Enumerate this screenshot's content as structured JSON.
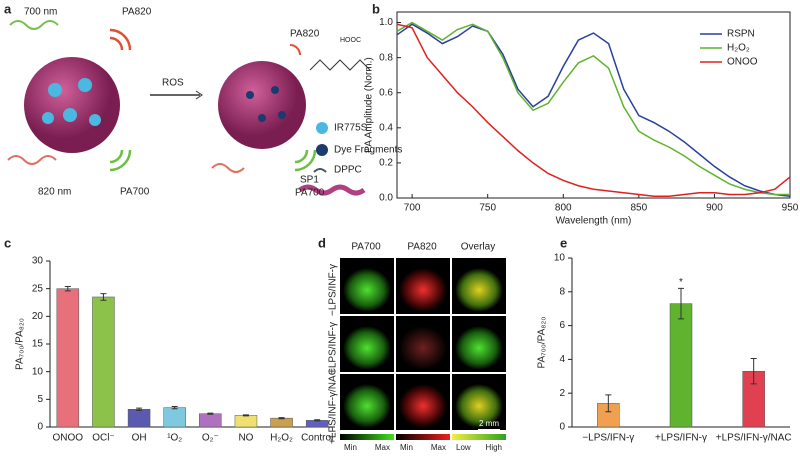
{
  "chart_data": [
    {
      "type": "line",
      "panel": "b",
      "xlabel": "Wavelength (nm)",
      "ylabel": "PA Amplitude (Norm.)",
      "x": [
        690,
        700,
        710,
        720,
        730,
        740,
        750,
        760,
        770,
        780,
        790,
        800,
        810,
        820,
        830,
        840,
        850,
        860,
        870,
        880,
        890,
        900,
        910,
        920,
        930,
        940,
        950
      ],
      "series": [
        {
          "name": "RSPN",
          "color": "#2a3f9e",
          "values": [
            0.93,
            0.99,
            0.94,
            0.88,
            0.92,
            0.98,
            0.95,
            0.82,
            0.62,
            0.52,
            0.58,
            0.75,
            0.9,
            0.94,
            0.88,
            0.62,
            0.47,
            0.43,
            0.38,
            0.32,
            0.25,
            0.18,
            0.12,
            0.07,
            0.04,
            0.02,
            0.01
          ]
        },
        {
          "name": "H₂O₂",
          "color": "#5fb32e",
          "values": [
            0.95,
            1.0,
            0.95,
            0.9,
            0.96,
            0.99,
            0.95,
            0.8,
            0.6,
            0.5,
            0.54,
            0.66,
            0.77,
            0.81,
            0.74,
            0.52,
            0.38,
            0.33,
            0.29,
            0.24,
            0.18,
            0.13,
            0.08,
            0.05,
            0.03,
            0.02,
            0.02
          ]
        },
        {
          "name": "ONOO",
          "color": "#e02020",
          "values": [
            0.99,
            0.97,
            0.8,
            0.7,
            0.6,
            0.52,
            0.43,
            0.35,
            0.27,
            0.2,
            0.14,
            0.1,
            0.07,
            0.05,
            0.04,
            0.03,
            0.02,
            0.01,
            0.01,
            0.02,
            0.03,
            0.03,
            0.02,
            0.02,
            0.03,
            0.05,
            0.12
          ]
        }
      ],
      "xlim": [
        690,
        950
      ],
      "xticks": [
        700,
        750,
        800,
        850,
        900,
        950
      ],
      "ylim": [
        0,
        1.06
      ],
      "yticks": [
        {
          "value": 0,
          "label": "0.0"
        },
        0.2,
        0.4,
        0.6,
        0.8,
        {
          "value": 1,
          "label": "1.0"
        }
      ],
      "legend": "upper right"
    },
    {
      "type": "bar",
      "panel": "c",
      "ylabel": "PA₇₀₀/PA₈₂₀",
      "categories": [
        "ONOO",
        "OCl⁻",
        "OH",
        "¹O₂",
        "O₂⁻",
        "NO",
        "H₂O₂",
        "Control"
      ],
      "values": [
        25,
        23.5,
        3.2,
        3.5,
        2.4,
        2.1,
        1.6,
        1.2
      ],
      "errors": [
        0.4,
        0.6,
        0.2,
        0.2,
        0.1,
        0.1,
        0.1,
        0.1
      ],
      "colors": [
        "#e8707a",
        "#8cc24a",
        "#5a5ab0",
        "#7ec8e0",
        "#b070c0",
        "#f0e070",
        "#c8a050",
        "#6060c0"
      ],
      "ylim": [
        0,
        30
      ],
      "yticks": [
        0,
        5,
        10,
        15,
        20,
        25,
        30
      ]
    },
    {
      "type": "bar",
      "panel": "e",
      "ylabel": "PA₇₀₀/PA₈₂₀",
      "categories": [
        "−LPS/IFN-γ",
        "+LPS/IFN-γ",
        "+LPS/IFN-γ/NAC"
      ],
      "values": [
        1.4,
        7.3,
        3.3
      ],
      "errors": [
        0.5,
        0.9,
        0.75
      ],
      "colors": [
        "#f0a050",
        "#5fb32e",
        "#e04050"
      ],
      "annotation": "*",
      "ylim": [
        0,
        10
      ],
      "yticks": [
        0,
        2,
        4,
        6,
        8,
        10
      ]
    }
  ],
  "diagram": {
    "panel": "a",
    "labels": [
      "700 nm",
      "PA820",
      "820 nm",
      "PA700",
      "ROS",
      "PA820",
      "PA700",
      "HOOC",
      "IR775S",
      "Dye Fragments",
      "DPPC",
      "SP1"
    ]
  },
  "images": {
    "panel": "d",
    "columns": [
      "PA700",
      "PA820",
      "Overlay"
    ],
    "rows": [
      "−LPS/INF-γ",
      "+LPS/INF-γ",
      "+LPS/INF-γ/NAC"
    ],
    "scales": [
      "Min",
      "Max",
      "Min",
      "Max",
      "Low",
      "High"
    ],
    "scale_bar": "2 mm"
  }
}
